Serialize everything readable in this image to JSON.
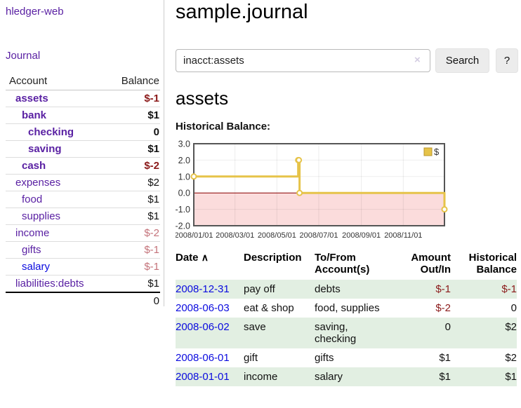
{
  "sidebar": {
    "app_title": "hledger-web",
    "nav": {
      "journal": "Journal"
    },
    "table": {
      "account_header": "Account",
      "balance_header": "Balance",
      "rows": [
        {
          "account": "assets",
          "depth": 1,
          "balance": "$-1",
          "in_query": true,
          "balance_tone": "neg-strong",
          "link_tone": "visited"
        },
        {
          "account": "bank",
          "depth": 2,
          "balance": "$1",
          "in_query": true,
          "balance_tone": "normal",
          "link_tone": "visited"
        },
        {
          "account": "checking",
          "depth": 3,
          "balance": "0",
          "in_query": true,
          "balance_tone": "normal",
          "link_tone": "visited"
        },
        {
          "account": "saving",
          "depth": 3,
          "balance": "$1",
          "in_query": true,
          "balance_tone": "normal",
          "link_tone": "visited"
        },
        {
          "account": "cash",
          "depth": 2,
          "balance": "$-2",
          "in_query": true,
          "balance_tone": "neg-strong",
          "link_tone": "visited"
        },
        {
          "account": "expenses",
          "depth": 1,
          "balance": "$2",
          "in_query": false,
          "balance_tone": "normal",
          "link_tone": "visited"
        },
        {
          "account": "food",
          "depth": 2,
          "balance": "$1",
          "in_query": false,
          "balance_tone": "normal",
          "link_tone": "visited"
        },
        {
          "account": "supplies",
          "depth": 2,
          "balance": "$1",
          "in_query": false,
          "balance_tone": "normal",
          "link_tone": "visited"
        },
        {
          "account": "income",
          "depth": 1,
          "balance": "$-2",
          "in_query": false,
          "balance_tone": "neg-soft",
          "link_tone": "visited"
        },
        {
          "account": "gifts",
          "depth": 2,
          "balance": "$-1",
          "in_query": false,
          "balance_tone": "neg-soft",
          "link_tone": "visited"
        },
        {
          "account": "salary",
          "depth": 2,
          "balance": "$-1",
          "in_query": false,
          "balance_tone": "neg-soft",
          "link_tone": "unvisited"
        },
        {
          "account": "liabilities:debts",
          "depth": 1,
          "balance": "$1",
          "in_query": false,
          "balance_tone": "normal",
          "link_tone": "visited"
        }
      ],
      "total": "0"
    }
  },
  "main": {
    "title": "sample.journal",
    "search": {
      "value": "inacct:assets",
      "clear_icon": "×",
      "search_button": "Search",
      "help_button": "?"
    },
    "section_heading": "assets",
    "chart_title": "Historical Balance:"
  },
  "chart_data": {
    "type": "line",
    "step": true,
    "series": [
      {
        "name": "$",
        "x": [
          "2008-01-01",
          "2008-06-01",
          "2008-06-02",
          "2008-06-03",
          "2008-12-31"
        ],
        "values": [
          1,
          2,
          2,
          0,
          -1
        ]
      }
    ],
    "xlim": [
      "2008-01-01",
      "2008-12-31"
    ],
    "ylim": [
      -2,
      3
    ],
    "yticks": [
      "3.0",
      "2.0",
      "1.0",
      "0.0",
      "-1.0",
      "-2.0"
    ],
    "xticks": [
      "2008/01/01",
      "2008/03/01",
      "2008/05/01",
      "2008/07/01",
      "2008/09/01",
      "2008/11/01"
    ],
    "legend": "$",
    "legend_position": "top-right",
    "grid": true
  },
  "register": {
    "headers": {
      "date": "Date",
      "description": "Description",
      "tofrom": "To/From Account(s)",
      "amount": "Amount Out/In",
      "balance": "Historical Balance"
    },
    "sort_indicator": "∧",
    "rows": [
      {
        "date": "2008-12-31",
        "description": "pay off",
        "accounts": "debts",
        "amount": "$-1",
        "balance": "$-1",
        "amount_tone": "neg",
        "balance_tone": "neg",
        "shade": true
      },
      {
        "date": "2008-06-03",
        "description": "eat & shop",
        "accounts": "food, supplies",
        "amount": "$-2",
        "balance": "0",
        "amount_tone": "neg",
        "balance_tone": "normal",
        "shade": false
      },
      {
        "date": "2008-06-02",
        "description": "save",
        "accounts": "saving, checking",
        "amount": "0",
        "balance": "$2",
        "amount_tone": "normal",
        "balance_tone": "normal",
        "shade": true
      },
      {
        "date": "2008-06-01",
        "description": "gift",
        "accounts": "gifts",
        "amount": "$1",
        "balance": "$2",
        "amount_tone": "normal",
        "balance_tone": "normal",
        "shade": false
      },
      {
        "date": "2008-01-01",
        "description": "income",
        "accounts": "salary",
        "amount": "$1",
        "balance": "$1",
        "amount_tone": "normal",
        "balance_tone": "normal",
        "shade": true
      }
    ]
  },
  "colors": {
    "link_visited": "#5a21a3",
    "link_unvisited": "#0b0bdf",
    "negative_strong": "#8b1a1a",
    "negative_soft": "#c4737a",
    "row_shade": "#e2efe2",
    "chart_line": "#e6c349",
    "chart_marker_fill": "#ffffff",
    "chart_negative_fill": "#fbdcdc",
    "chart_zero_line": "#8b0000",
    "chart_border": "#555555",
    "chart_grid": "rgba(0,0,0,0.07)"
  }
}
